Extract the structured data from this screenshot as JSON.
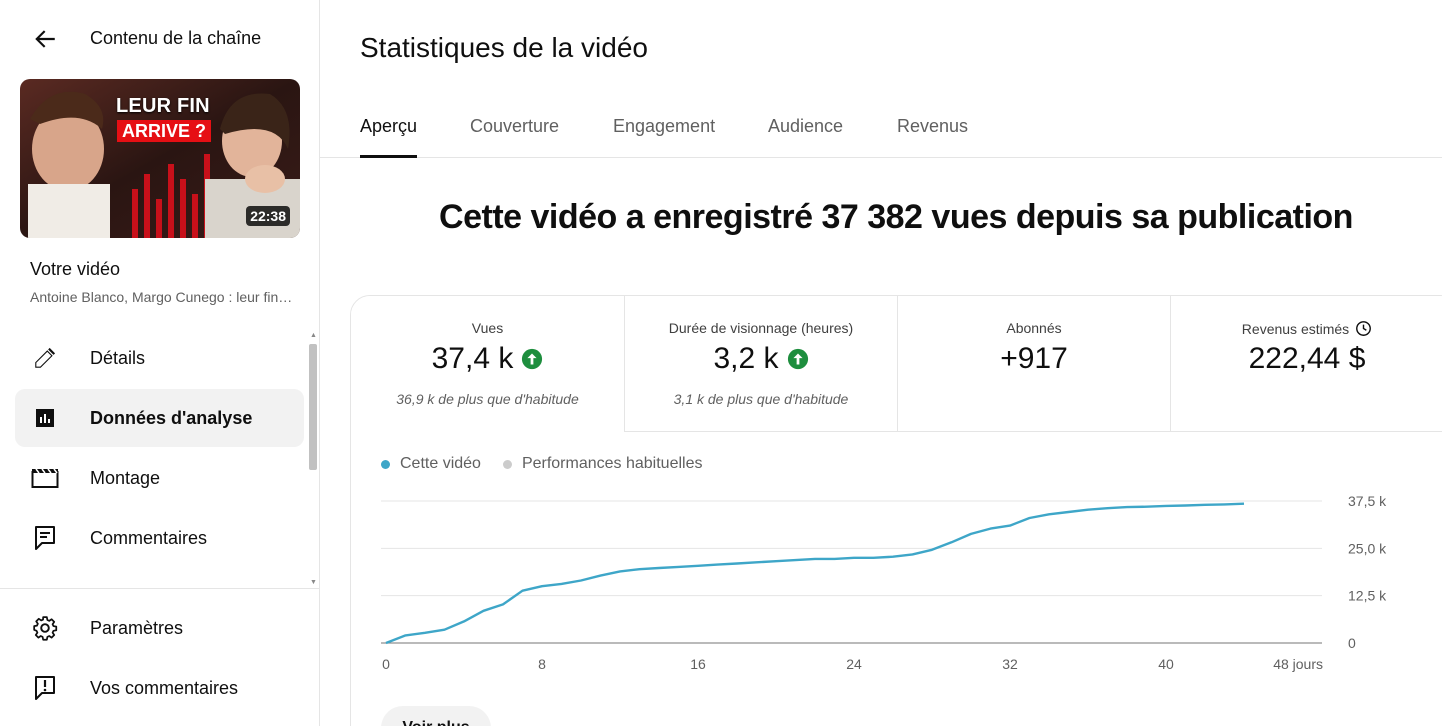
{
  "sidebar": {
    "title": "Contenu de la chaîne",
    "thumbnail": {
      "overlay_line1": "LEUR FIN",
      "overlay_line2": "ARRIVE ?",
      "duration": "22:38"
    },
    "video_label": "Votre vidéo",
    "video_subtitle": "Antoine Blanco, Margo Cunego : leur fin arrive ?",
    "nav": [
      {
        "label": "Détails",
        "icon": "pencil-icon"
      },
      {
        "label": "Données d'analyse",
        "icon": "analytics-icon",
        "active": true
      },
      {
        "label": "Montage",
        "icon": "clapperboard-icon"
      },
      {
        "label": "Commentaires",
        "icon": "comment-icon"
      }
    ],
    "bottom_nav": [
      {
        "label": "Paramètres",
        "icon": "gear-icon"
      },
      {
        "label": "Vos commentaires",
        "icon": "feedback-icon"
      }
    ]
  },
  "main": {
    "title": "Statistiques de la vidéo",
    "tabs": [
      {
        "label": "Aperçu",
        "active": true
      },
      {
        "label": "Couverture"
      },
      {
        "label": "Engagement"
      },
      {
        "label": "Audience"
      },
      {
        "label": "Revenus"
      }
    ],
    "headline": "Cette vidéo a enregistré 37 382 vues depuis sa publication",
    "kpis": [
      {
        "label": "Vues",
        "value": "37,4 k",
        "sub": "36,9 k de plus que d'habitude",
        "trend": "up"
      },
      {
        "label": "Durée de visionnage (heures)",
        "value": "3,2 k",
        "sub": "3,1 k de plus que d'habitude",
        "trend": "up"
      },
      {
        "label": "Abonnés",
        "value": "+917",
        "sub": ""
      },
      {
        "label": "Revenus estimés",
        "value": "222,44 $",
        "sub": "",
        "icon": "clock-icon"
      }
    ],
    "legend": {
      "this_video": "Cette vidéo",
      "typical": "Performances habituelles"
    },
    "more_button": "Voir plus"
  },
  "colors": {
    "accent_line": "#3ea6c8",
    "typical_dot": "#cccccc",
    "trend_up": "#1e8e3e"
  },
  "chart_data": {
    "type": "line",
    "x_tick_labels": [
      "0",
      "8",
      "16",
      "24",
      "32",
      "40",
      "48 jours"
    ],
    "y_tick_labels": [
      "0",
      "12,5 k",
      "25,0 k",
      "37,5 k"
    ],
    "xlim": [
      0,
      48
    ],
    "ylim": [
      0,
      37500
    ],
    "grid": true,
    "series": [
      {
        "name": "Cette vidéo",
        "x": [
          0,
          1,
          2,
          3,
          4,
          5,
          6,
          7,
          8,
          9,
          10,
          11,
          12,
          13,
          14,
          15,
          16,
          17,
          18,
          19,
          20,
          21,
          22,
          23,
          24,
          25,
          26,
          27,
          28,
          29,
          30,
          31,
          32,
          33,
          34,
          35,
          36,
          37,
          38,
          39,
          40,
          41,
          42,
          43,
          44
        ],
        "y": [
          0,
          2000,
          2700,
          3500,
          5700,
          8500,
          10200,
          13800,
          15000,
          15600,
          16500,
          17800,
          18900,
          19500,
          19800,
          20100,
          20400,
          20700,
          21000,
          21300,
          21600,
          21900,
          22200,
          22200,
          22500,
          22500,
          22800,
          23400,
          24600,
          26600,
          28800,
          30200,
          31000,
          33000,
          34000,
          34600,
          35200,
          35600,
          35900,
          36000,
          36200,
          36300,
          36500,
          36600,
          36800
        ]
      }
    ]
  }
}
